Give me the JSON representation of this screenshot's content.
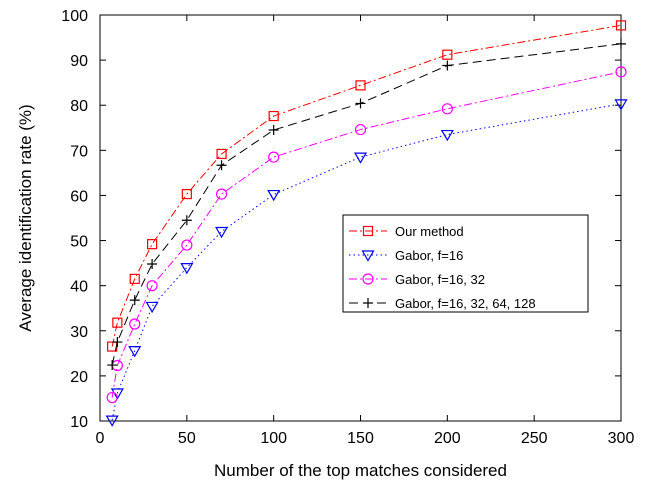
{
  "chart_data": {
    "type": "line",
    "title": "",
    "xlabel": "Number of the top matches considered",
    "ylabel": "Average identification rate (%)",
    "xlim": [
      0,
      300
    ],
    "ylim": [
      10,
      100
    ],
    "xticks": [
      0,
      50,
      100,
      150,
      200,
      250,
      300
    ],
    "yticks": [
      10,
      20,
      30,
      40,
      50,
      60,
      70,
      80,
      90,
      100
    ],
    "grid": false,
    "legend_position": "center-right",
    "series": [
      {
        "name": "Our method",
        "color": "#ff0000",
        "marker": "square",
        "dash": "dash-dot",
        "x": [
          7,
          10,
          20,
          30,
          50,
          70,
          100,
          150,
          200,
          300
        ],
        "y": [
          26.5,
          31.8,
          41.5,
          49.2,
          60.3,
          69.2,
          77.6,
          84.4,
          91.2,
          97.7
        ]
      },
      {
        "name": "Gabor, f=16",
        "color": "#0000ff",
        "marker": "triangle-down",
        "dash": "dotted",
        "x": [
          7,
          10,
          20,
          30,
          50,
          70,
          100,
          150,
          200,
          300
        ],
        "y": [
          10.2,
          16.2,
          25.6,
          35.4,
          44.0,
          52.0,
          60.2,
          68.5,
          73.5,
          80.3
        ]
      },
      {
        "name": "Gabor, f=16, 32",
        "color": "#ff00ff",
        "marker": "circle",
        "dash": "dash-dot",
        "x": [
          7,
          10,
          20,
          30,
          50,
          70,
          100,
          150,
          200,
          300
        ],
        "y": [
          15.2,
          22.3,
          31.5,
          40.0,
          49.0,
          60.3,
          68.5,
          74.6,
          79.2,
          87.4
        ]
      },
      {
        "name": "Gabor, f=16, 32, 64, 128",
        "color": "#000000",
        "marker": "plus",
        "dash": "dashed",
        "x": [
          7,
          10,
          20,
          30,
          50,
          70,
          100,
          150,
          200,
          300
        ],
        "y": [
          22.4,
          27.5,
          36.8,
          44.8,
          54.5,
          66.7,
          74.5,
          80.4,
          88.8,
          93.6
        ]
      }
    ]
  }
}
